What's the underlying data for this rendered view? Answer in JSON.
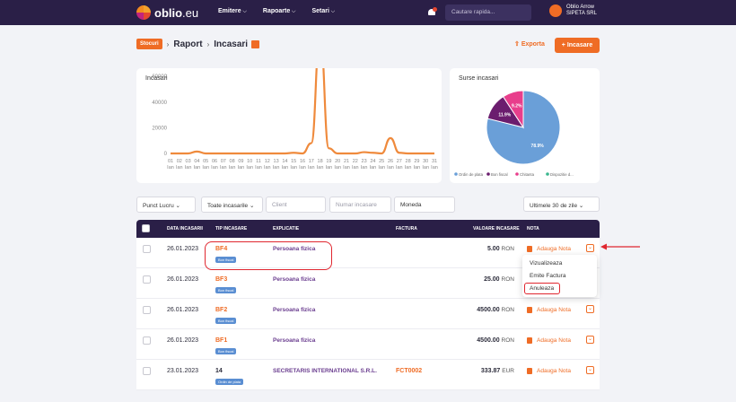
{
  "nav": {
    "logo_main": "oblio",
    "logo_suffix": ".eu",
    "menu": [
      "Emitere",
      "Rapoarte",
      "Setari"
    ],
    "search_placeholder": "Cautare rapida...",
    "user_name": "Oblio Arrow",
    "user_company": "SIPETA SRL"
  },
  "header": {
    "breadcrumb_badge": "Stocuri",
    "breadcrumb": [
      "Raport",
      "Incasari"
    ],
    "export_label": "Exporta",
    "add_label": "Incasare"
  },
  "chart_data": [
    {
      "type": "line",
      "title": "Incasari",
      "ylim": [
        0,
        100000
      ],
      "yticks": [
        "100000",
        "80000",
        "60000",
        "40000",
        "20000",
        "0"
      ],
      "x": [
        "01",
        "02",
        "03",
        "04",
        "05",
        "06",
        "07",
        "08",
        "09",
        "10",
        "11",
        "12",
        "13",
        "14",
        "15",
        "16",
        "17",
        "18",
        "19",
        "20",
        "21",
        "22",
        "23",
        "24",
        "25",
        "26",
        "27",
        "28",
        "29",
        "30",
        "31"
      ],
      "x_sub": "Ian",
      "values": [
        0,
        0,
        0,
        1500,
        0,
        0,
        0,
        0,
        0,
        0,
        0,
        0,
        0,
        0,
        500,
        0,
        8000,
        92000,
        4000,
        0,
        0,
        0,
        1000,
        500,
        0,
        12000,
        500,
        0,
        0,
        0,
        0
      ],
      "color": "#ef8a3c"
    },
    {
      "type": "pie",
      "title": "Surse incasari",
      "labels": [
        "Ordin de plata",
        "Bon fiscal",
        "Chitanta",
        "Dispozitie d..."
      ],
      "values": [
        78.9,
        11.9,
        9.2,
        0
      ],
      "colors": [
        "#6a9fd8",
        "#6b1d6e",
        "#e83e8c",
        "#3bb78f"
      ]
    }
  ],
  "filters": {
    "punct_lucru": "Punct Lucru",
    "tip": "Toate incasarile",
    "client_placeholder": "Client",
    "numar_placeholder": "Numar incasare",
    "moneda": "Moneda",
    "perioada": "Ultimele 30 de zile"
  },
  "table": {
    "headers": [
      "DATA INCASARII",
      "TIP INCASARE",
      "EXPLICATIE",
      "FACTURA",
      "VALOARE INCASARE",
      "NOTA"
    ],
    "rows": [
      {
        "date": "26.01.2023",
        "tip": "BF4",
        "badge": "Bon fiscal",
        "expl": "Persoana fizica",
        "factura": "",
        "val": "5.00",
        "cur": "RON",
        "nota": "Adauga Nota"
      },
      {
        "date": "26.01.2023",
        "tip": "BF3",
        "badge": "Bon fiscal",
        "expl": "Persoana fizica",
        "factura": "",
        "val": "25.00",
        "cur": "RON",
        "nota": "Adauga Nota"
      },
      {
        "date": "26.01.2023",
        "tip": "BF2",
        "badge": "Bon fiscal",
        "expl": "Persoana fizica",
        "factura": "",
        "val": "4500.00",
        "cur": "RON",
        "nota": "Adauga Nota"
      },
      {
        "date": "26.01.2023",
        "tip": "BF1",
        "badge": "Bon fiscal",
        "expl": "Persoana fizica",
        "factura": "",
        "val": "4500.00",
        "cur": "RON",
        "nota": "Adauga Nota"
      },
      {
        "date": "23.01.2023",
        "tip": "14",
        "badge": "Ordin de plata",
        "expl": "SECRETARIS INTERNATIONAL S.R.L.",
        "factura": "FCT0002",
        "val": "333.87",
        "cur": "EUR",
        "nota": "Adauga Nota"
      }
    ]
  },
  "dropdown": [
    "Vizualizeaza",
    "Emite Factura",
    "Anuleaza"
  ],
  "colors": {
    "accent": "#ef6c25",
    "nav_bg": "#2a1f47",
    "annotation": "#e0262f"
  }
}
